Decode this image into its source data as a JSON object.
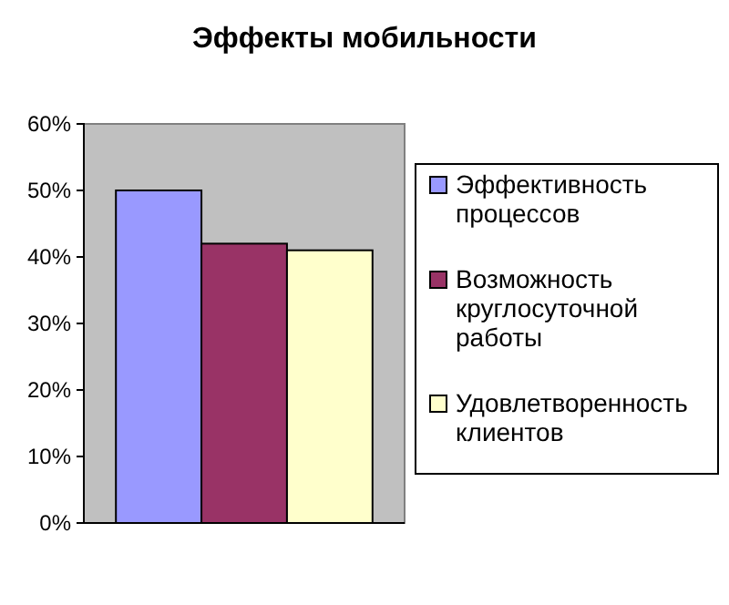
{
  "chart_data": {
    "type": "bar",
    "title": "Эффекты мобильности",
    "categories": [
      null
    ],
    "series": [
      {
        "name": "Эффективность процессов",
        "color": "#9999ff",
        "values": [
          50
        ]
      },
      {
        "name": "Возможность круглосуточной работы",
        "color": "#993366",
        "values": [
          42
        ]
      },
      {
        "name": "Удовлетворенность клиентов",
        "color": "#ffffcc",
        "values": [
          41
        ]
      }
    ],
    "ylim": [
      0,
      60
    ],
    "yticks": [
      {
        "value": 0,
        "label": "0%"
      },
      {
        "value": 10,
        "label": "10%"
      },
      {
        "value": 20,
        "label": "20%"
      },
      {
        "value": 30,
        "label": "30%"
      },
      {
        "value": 40,
        "label": "40%"
      },
      {
        "value": 50,
        "label": "50%"
      },
      {
        "value": 60,
        "label": "60%"
      }
    ],
    "grid": false,
    "legend": "right"
  }
}
